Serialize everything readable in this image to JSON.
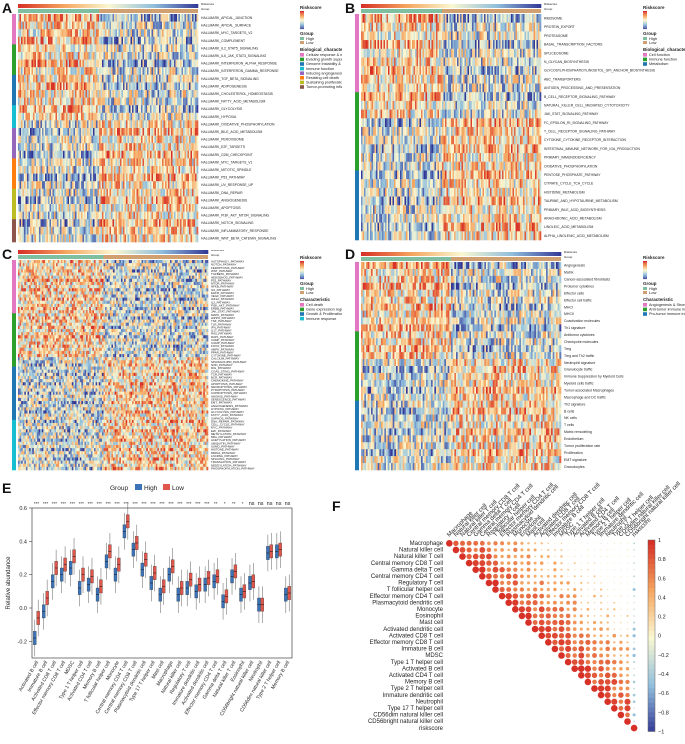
{
  "panels": {
    "a": {
      "label": "A"
    },
    "b": {
      "label": "B"
    },
    "c": {
      "label": "C"
    },
    "d": {
      "label": "D"
    },
    "e": {
      "label": "E"
    },
    "f": {
      "label": "F"
    }
  },
  "heatmaps": {
    "a": {
      "legend_title": "Riskscore",
      "group_title": "Group",
      "group_levels": [
        "High",
        "Low"
      ],
      "category_title": "Biological_characteristic",
      "categories": [
        "Cellular response & metabolism",
        "Evading growth suppressors",
        "Genome instability & mutation",
        "Immune function",
        "Inducing angiogenesis",
        "Resisting cell death",
        "Sustaining proliferation",
        "Tumor-promoting inflammation"
      ],
      "rows": [
        "HALLMARK_APICAL_JUNCTION",
        "HALLMARK_APICAL_SURFACE",
        "HALLMARK_MYC_TARGETS_V2",
        "HALLMARK_COMPLEMENT",
        "HALLMARK_IL2_STAT5_SIGNALING",
        "HALLMARK_IL6_JAK_STAT3_SIGNALING",
        "HALLMARK_INTERFERON_ALPHA_RESPONSE",
        "HALLMARK_INTERFERON_GAMMA_RESPONSE",
        "HALLMARK_TGF_BETA_SIGNALING",
        "HALLMARK_ADIPOGENESIS",
        "HALLMARK_CHOLESTEROL_HOMEOSTASIS",
        "HALLMARK_FATTY_ACID_METABOLISM",
        "HALLMARK_GLYCOLYSIS",
        "HALLMARK_HYPOXIA",
        "HALLMARK_OXIDATIVE_PHOSPHORYLATION",
        "HALLMARK_BILE_ACID_METABOLISM",
        "HALLMARK_PEROXISOME",
        "HALLMARK_E2F_TARGETS",
        "HALLMARK_G2M_CHECKPOINT",
        "HALLMARK_MYC_TARGETS_V1",
        "HALLMARK_MITOTIC_SPINDLE",
        "HALLMARK_P53_PATHWAY",
        "HALLMARK_UV_RESPONSE_UP",
        "HALLMARK_DNA_REPAIR",
        "HALLMARK_ANGIOGENESIS",
        "HALLMARK_APOPTOSIS",
        "HALLMARK_PI3K_AKT_MTOR_SIGNALING",
        "HALLMARK_NOTCH_SIGNALING",
        "HALLMARK_INFLAMMATORY_RESPONSE",
        "HALLMARK_WNT_BETA_CATENIN_SIGNALING"
      ]
    },
    "b": {
      "legend_title": "Riskscore",
      "group_title": "Group",
      "group_levels": [
        "High",
        "Low"
      ],
      "category_title": "Biological_characteristic",
      "categories": [
        "Cell function",
        "Immune function",
        "Metabolism"
      ],
      "rows": [
        "RIBOSOME",
        "PROTEIN_EXPORT",
        "PROTEASOME",
        "BASAL_TRANSCRIPTION_FACTORS",
        "SPLICEOSOME",
        "N_GLYCAN_BIOSYNTHESIS",
        "GLYCOSYLPHOSPHATIDYLINOSITOL_GPI_ANCHOR_BIOSYNTHESIS",
        "ABC_TRANSPORTERS",
        "ANTIGEN_PROCESSING_AND_PRESENTATION",
        "B_CELL_RECEPTOR_SIGNALING_PATHWAY",
        "NATURAL_KILLER_CELL_MEDIATED_CYTOTOXICITY",
        "JAK_STAT_SIGNALING_PATHWAY",
        "FC_EPSILON_RI_SIGNALING_PATHWAY",
        "T_CELL_RECEPTOR_SIGNALING_PATHWAY",
        "CYTOKINE_CYTOKINE_RECEPTOR_INTERACTION",
        "INTESTINAL_IMMUNE_NETWORK_FOR_IGA_PRODUCTION",
        "PRIMARY_IMMUNODEFICIENCY",
        "OXIDATIVE_PHOSPHORYLATION",
        "PENTOSE_PHOSPHATE_PATHWAY",
        "CITRATE_CYCLE_TCA_CYCLE",
        "HISTIDINE_METABOLISM",
        "TAURINE_AND_HYPOTAURINE_METABOLISM",
        "PRIMARY_BILE_ACID_BIOSYNTHESIS",
        "ARACHIDONIC_ACID_METABOLISM",
        "LINOLEIC_ACID_METABOLISM",
        "ALPHA_LINOLENIC_ACID_METABOLISM"
      ]
    },
    "c": {
      "legend_title": "Riskscore",
      "group_title": "Group",
      "group_levels": [
        "High",
        "Low"
      ],
      "category_title": "Characteristic",
      "categories": [
        "Cell death",
        "Gene expression regulation & modification",
        "Growth & Proliferation & Migration",
        "Immune response"
      ],
      "rows": [
        "AUTOPHAGY_PATHWAY",
        "NOTCH_PATHWAY",
        "FEROPTOSIS_PATHWAY",
        "WNT_PATHWAY",
        "TGFBETA_PATHWAY",
        "HEDGEHOG_PATHWAY",
        "P53_PATHWAY",
        "MTOR_PATHWAY",
        "NFKB_PATHWAY",
        "IL6_PATHWAY",
        "EGFR_PATHWAY",
        "VEGF_PATHWAY",
        "HIF1A_PATHWAY",
        "IL2_PATHWAY",
        "PI3K_AKT_PATHWAY",
        "ERBB_PATHWAY",
        "JAK_STAT_PATHWAY",
        "MAPK_PATHWAY",
        "HIPPO_PATHWAY",
        "TNF_PATHWAY",
        "TLR_PATHWAY",
        "IFN_PATHWAY",
        "IL17_PATHWAY",
        "RAS_PATHWAY",
        "RAP1_PATHWAY",
        "CAMP_PATHWAY",
        "CGMP_PATHWAY",
        "FOXO_PATHWAY",
        "AMPK_PATHWAY",
        "PPAR_PATHWAY",
        "CYTOKINE_PATHWAY",
        "CALCIUM_PATHWAY",
        "SPHINGOLIPID_PATHWAY",
        "NOD_PATHWAY",
        "RIG_PATHWAY",
        "CGAS_STING_PATHWAY",
        "TCR_PATHWAY",
        "BCR_PATHWAY",
        "CHEMOKINE_PATHWAY",
        "APOPTOSIS_PATHWAY",
        "NECROPTOSIS_PATHWAY",
        "PYROPTOSIS_PATHWAY",
        "CUPROPTOSIS_PATHWAY",
        "ANOIKIS_PATHWAY",
        "SENESCENCE_PATHWAY",
        "EMT_PATHWAY",
        "ANGIOGENESIS_PATHWAY",
        "HYPOXIA_PATHWAY",
        "GLYCOLYSIS_PATHWAY",
        "FATTY_ACID_PATHWAY",
        "OXPHOS_PATHWAY",
        "DNA_REPAIR_PATHWAY",
        "CELL_CYCLE_PATHWAY",
        "MYC_PATHWAY",
        "E2F_PATHWAY",
        "METHYLATION_PATHWAY",
        "M6A_PATHWAY",
        "ACETYLATION_PATHWAY",
        "UBIQUITIN_PATHWAY",
        "SUMO_PATHWAY",
        "HISTONE_PATHWAY",
        "MIRNA_PATHWAY",
        "LNCRNA_PATHWAY",
        "SPLICING_PATHWAY",
        "TRANSLATION_PATHWAY",
        "NEDDYLATION_PATHWAY",
        "PHOSPHORYLATION_PATHWAY"
      ]
    },
    "d": {
      "legend_title": "Riskscore",
      "group_title": "Group",
      "group_levels": [
        "High",
        "Low"
      ],
      "category_title": "Characteristic",
      "categories": [
        "Angiogenesis & Stroma",
        "Anti-tumor immune infiltrate",
        "Pro-tumor immune infiltrate"
      ],
      "rows": [
        "Angiogenesis",
        "Matrix",
        "Cancer-associated fibroblasts",
        "Protumor cytokines",
        "Effector cells",
        "Effector cell traffic",
        "MHCI",
        "MHCII",
        "Coactivation molecules",
        "Th1 signature",
        "Antitumor cytokines",
        "Checkpoint molecules",
        "Treg",
        "Treg and Th2 traffic",
        "Neutrophil signature",
        "Granulocyte traffic",
        "Immune Suppression by Myeloid Cells",
        "Myeloid cells traffic",
        "Tumor-associated Macrophages",
        "Macrophage and DC traffic",
        "Th2 signature",
        "B cells",
        "NK cells",
        "T cells",
        "Matrix remodeling",
        "Endothelium",
        "Tumor proliferation rate",
        "Proliferation",
        "EMT signature",
        "Granulocytes"
      ]
    }
  },
  "chart_data": [
    {
      "type": "box",
      "panel": "E",
      "legend_title": "Group",
      "series": [
        {
          "name": "High",
          "color": "#3b73b9"
        },
        {
          "name": "Low",
          "color": "#e0564b"
        }
      ],
      "ylabel": "Relative abundance",
      "ylim": [
        -0.3,
        0.6
      ],
      "yticks": [
        "-0.2",
        "0.0",
        "0.2",
        "0.4",
        "0.6"
      ],
      "categories": [
        "Activated B cell",
        "Immature B cell",
        "Activated CD8 T cell",
        "Effector memory CD8 T cell",
        "MDSC",
        "Type 1 T helper cell",
        "Activated CD4 T cell",
        "Memory B cell",
        "T follicular helper cell",
        "Monocyte",
        "Central memory CD4 T cell",
        "Central memory CD8 T cell",
        "Plasmacytoid dendritic cell",
        "Type 17 T helper cell",
        "Mast cell",
        "Macrophage",
        "Natural killer cell",
        "Regulatory T cell",
        "Immature dendritic cell",
        "Activated dendritic cell",
        "Effector memory CD4 T cell",
        "Gamma delta T cell",
        "Natural killer T cell",
        "Eosinophil",
        "CD56bright natural killer cell",
        "Neutrophil",
        "CD56dim natural killer cell",
        "Type 2 T helper cell",
        "Memory B cell"
      ],
      "significance": [
        "***",
        "***",
        "***",
        "***",
        "***",
        "***",
        "***",
        "***",
        "***",
        "***",
        "***",
        "***",
        "***",
        "***",
        "***",
        "***",
        "***",
        "***",
        "***",
        "***",
        "**",
        "*",
        "**",
        "*",
        "ns",
        "ns",
        "ns",
        "ns",
        "ns"
      ],
      "medians_high": [
        -0.18,
        -0.02,
        0.16,
        0.2,
        0.24,
        0.12,
        0.14,
        0.08,
        0.28,
        0.2,
        0.46,
        0.35,
        0.23,
        0.15,
        0.08,
        0.2,
        0.08,
        0.12,
        0.1,
        0.14,
        0.16,
        0.04,
        0.19,
        0.08,
        0.15,
        0.02,
        0.33,
        0.34,
        0.08
      ],
      "medians_low": [
        -0.06,
        0.06,
        0.24,
        0.26,
        0.31,
        0.2,
        0.19,
        0.13,
        0.34,
        0.26,
        0.52,
        0.39,
        0.29,
        0.21,
        0.13,
        0.25,
        0.12,
        0.17,
        0.14,
        0.18,
        0.19,
        0.07,
        0.22,
        0.1,
        0.16,
        0.02,
        0.34,
        0.35,
        0.09
      ]
    },
    {
      "type": "heatmap",
      "panel": "F",
      "labels": [
        "Macrophage",
        "Natural killer cell",
        "Natural killer T cell",
        "Central memory CD8 T cell",
        "Gamma delta T cell",
        "Central memory CD4 T cell",
        "Regulatory T cell",
        "T follicular helper cell",
        "Effector memory CD4 T cell",
        "Plasmacytoid dendritic cell",
        "Monocyte",
        "Eosinophil",
        "Mast cell",
        "Activated dendritic cell",
        "Activated CD8 T cell",
        "Effector memory CD8 T cell",
        "Immature B cell",
        "MDSC",
        "Type 1 T helper cell",
        "Activated B cell",
        "Activated CD4 T cell",
        "Memory B cell",
        "Type 2 T helper cell",
        "Immature dendritic cell",
        "Neutrophil",
        "Type 17 T helper cell",
        "CD56dim natural killer cell",
        "CD56bright natural killer cell",
        "riskscore"
      ],
      "colorbar_ticks": [
        "1",
        "0.8",
        "0.6",
        "0.4",
        "0.2",
        "0",
        "−0.2",
        "−0.4",
        "−0.6",
        "−0.8",
        "−1"
      ]
    }
  ]
}
